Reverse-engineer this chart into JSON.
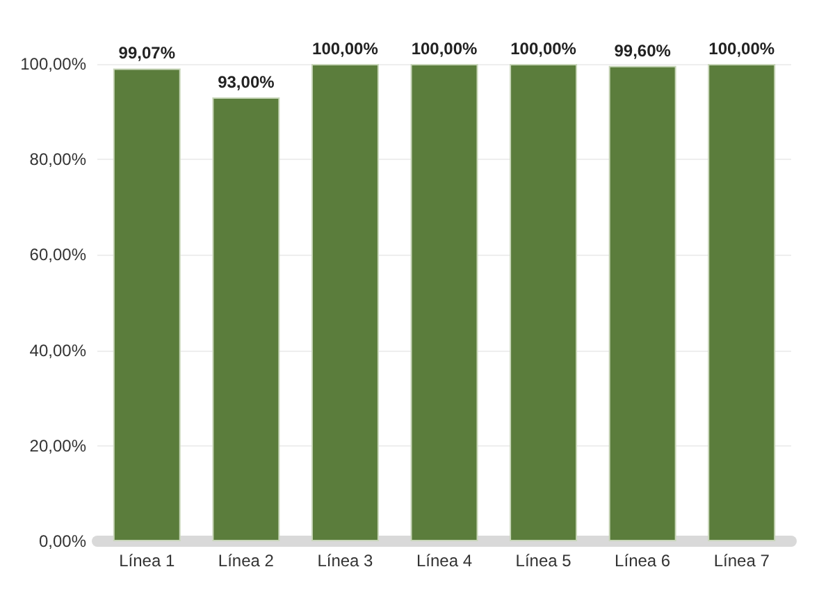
{
  "chart_data": {
    "type": "bar",
    "categories": [
      "Línea 1",
      "Línea 2",
      "Línea 3",
      "Línea 4",
      "Línea 5",
      "Línea 6",
      "Línea 7"
    ],
    "values": [
      99.07,
      93,
      100,
      100,
      100,
      99.6,
      100
    ],
    "value_labels": [
      "99,07%",
      "93,00%",
      "100,00%",
      "100,00%",
      "100,00%",
      "99,60%",
      "100,00%"
    ],
    "color": "#5b7d3c",
    "ylim": [
      0,
      100
    ],
    "yticks": [
      {
        "value": 0,
        "label": "0,00%"
      },
      {
        "value": 20,
        "label": "20,00%"
      },
      {
        "value": 40,
        "label": "40,00%"
      },
      {
        "value": 60,
        "label": "60,00%"
      },
      {
        "value": 80,
        "label": "80,00%"
      },
      {
        "value": 100,
        "label": "100,00%"
      }
    ],
    "grid": "y"
  }
}
